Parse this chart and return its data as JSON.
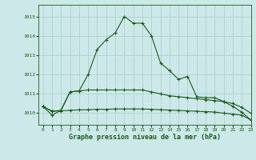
{
  "title": "Graphe pression niveau de la mer (hPa)",
  "background_color": "#cce8e8",
  "grid_color": "#aacece",
  "line_color": "#1a5c1a",
  "xlim": [
    -0.5,
    23
  ],
  "ylim": [
    1009.4,
    1015.6
  ],
  "yticks": [
    1010,
    1011,
    1012,
    1013,
    1014,
    1015
  ],
  "xticks": [
    0,
    1,
    2,
    3,
    4,
    5,
    6,
    7,
    8,
    9,
    10,
    11,
    12,
    13,
    14,
    15,
    16,
    17,
    18,
    19,
    20,
    21,
    22,
    23
  ],
  "series1": {
    "x": [
      0,
      1,
      2,
      3,
      4,
      5,
      6,
      7,
      8,
      9,
      10,
      11,
      12,
      13,
      14,
      15,
      16,
      17,
      18,
      19,
      20,
      21,
      22,
      23
    ],
    "y": [
      1010.35,
      1009.9,
      1010.15,
      1011.1,
      1011.15,
      1012.0,
      1013.3,
      1013.8,
      1014.15,
      1015.0,
      1014.65,
      1014.65,
      1014.0,
      1012.6,
      1012.2,
      1011.75,
      1011.9,
      1010.85,
      1010.8,
      1010.8,
      1010.6,
      1010.35,
      1010.05,
      1009.65
    ]
  },
  "series2": {
    "x": [
      0,
      1,
      2,
      3,
      4,
      5,
      6,
      7,
      8,
      9,
      10,
      11,
      12,
      13,
      14,
      15,
      16,
      17,
      18,
      19,
      20,
      21,
      22,
      23
    ],
    "y": [
      1010.35,
      1010.1,
      1010.15,
      1011.1,
      1011.15,
      1011.2,
      1011.2,
      1011.2,
      1011.2,
      1011.2,
      1011.2,
      1011.2,
      1011.1,
      1011.0,
      1010.9,
      1010.85,
      1010.8,
      1010.75,
      1010.7,
      1010.65,
      1010.6,
      1010.5,
      1010.3,
      1010.0
    ]
  },
  "series3": {
    "x": [
      0,
      1,
      2,
      3,
      4,
      5,
      6,
      7,
      8,
      9,
      10,
      11,
      12,
      13,
      14,
      15,
      16,
      17,
      18,
      19,
      20,
      21,
      22,
      23
    ],
    "y": [
      1010.35,
      1010.1,
      1010.12,
      1010.15,
      1010.17,
      1010.18,
      1010.2,
      1010.2,
      1010.22,
      1010.22,
      1010.22,
      1010.22,
      1010.2,
      1010.18,
      1010.16,
      1010.14,
      1010.12,
      1010.1,
      1010.08,
      1010.06,
      1010.0,
      1009.95,
      1009.9,
      1009.65
    ]
  }
}
